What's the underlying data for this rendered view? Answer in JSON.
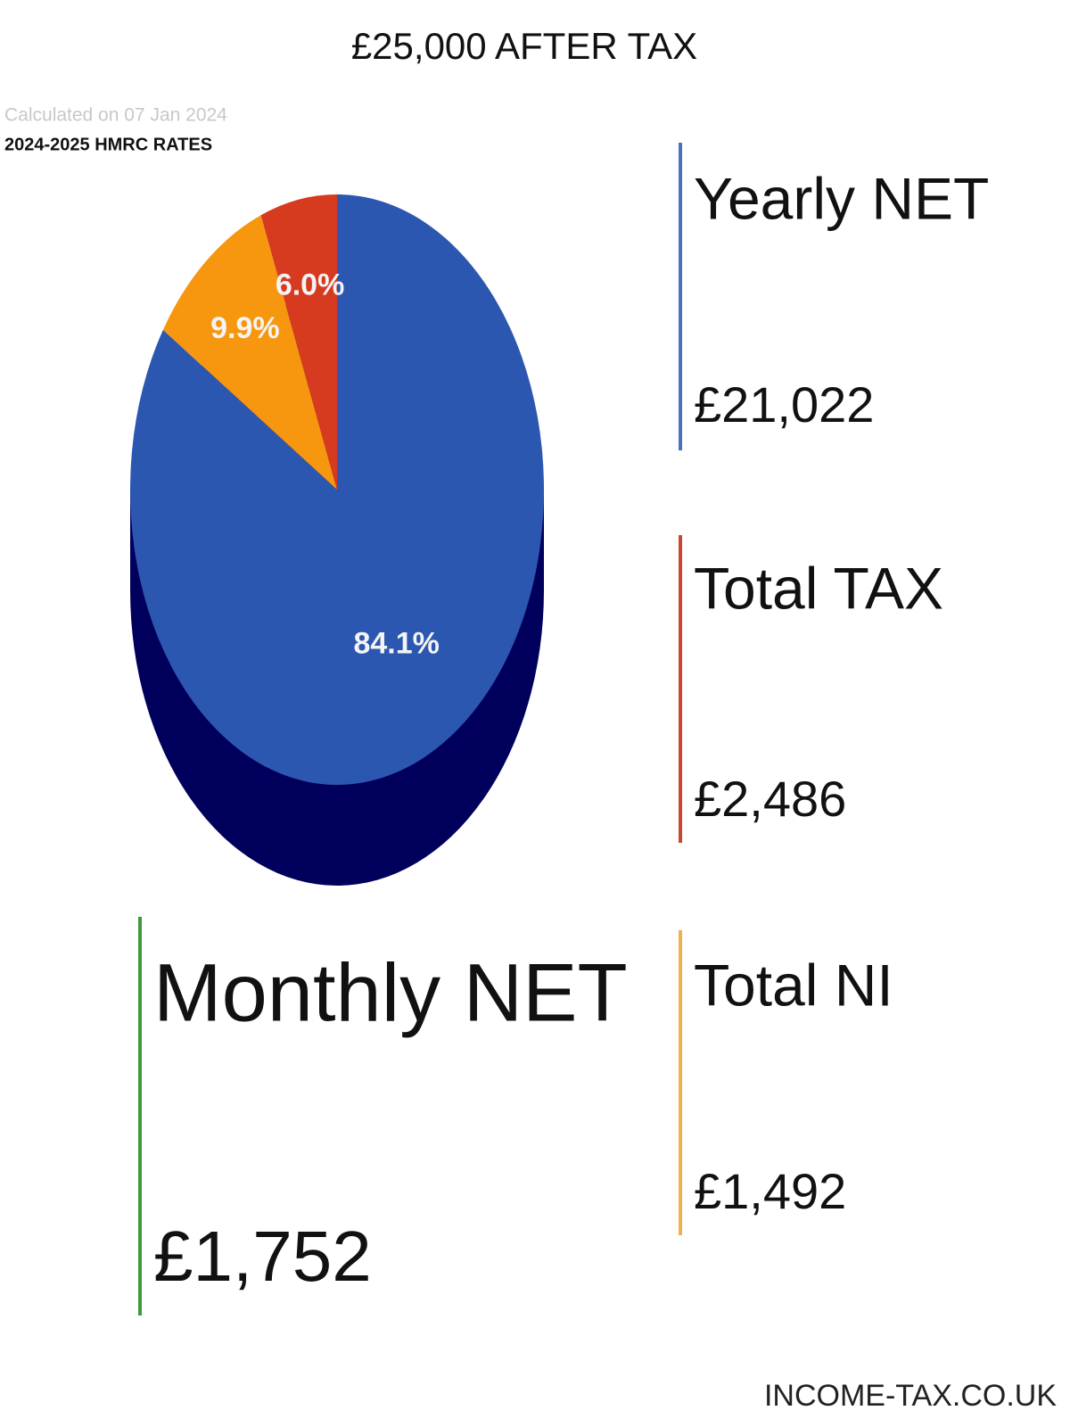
{
  "chart_data": {
    "type": "pie",
    "title": "£25,000 AFTER TAX",
    "subtitle": "Calculated on 07 Jan 2024",
    "note": "2024-2025 HMRC RATES",
    "values": [
      84.1,
      9.9,
      6.0
    ],
    "value_labels": [
      "84.1%",
      "9.9%",
      "6.0%"
    ],
    "colors": [
      "#2c57b1",
      "#f7960f",
      "#d63a1f"
    ],
    "depth_color": "#00005c"
  },
  "stats": [
    {
      "label": "Yearly NET",
      "value": "£21,022",
      "color": "#4a6fc4"
    },
    {
      "label": "Total TAX",
      "value": "£2,486",
      "color": "#c9472e"
    },
    {
      "label": "Total NI",
      "value": "£1,492",
      "color": "#f0b050"
    },
    {
      "label": "Monthly NET",
      "value": "£1,752",
      "color": "#3f9a3a"
    }
  ],
  "footer": "INCOME-TAX.CO.UK"
}
